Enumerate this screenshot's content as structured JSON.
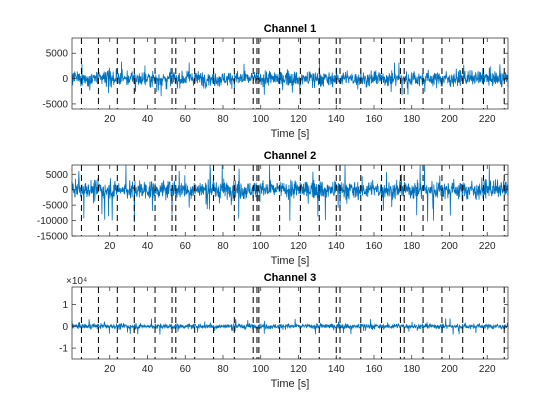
{
  "chart_data": [
    {
      "type": "line",
      "title": "Channel 1",
      "xlabel": "Time [s]",
      "ylabel": "",
      "xlim": [
        0,
        231
      ],
      "ylim": [
        -6000,
        8000
      ],
      "xticks": [
        20,
        40,
        60,
        80,
        100,
        120,
        140,
        160,
        180,
        200,
        220
      ],
      "xtick_labels": [
        "20",
        "40",
        "60",
        "80",
        "100",
        "120",
        "140",
        "160",
        "180",
        "200",
        "220"
      ],
      "yticks": [
        -5000,
        0,
        5000
      ],
      "ytick_labels": [
        "-5000",
        "0",
        "5000"
      ],
      "series": [
        {
          "color": "#0072BD",
          "amplitude_typical": 1500,
          "amplitude_peak": 3500
        }
      ],
      "event_markers": [
        5,
        14,
        24,
        33,
        44,
        53,
        55,
        65,
        75,
        86,
        96,
        98,
        99,
        110,
        121,
        131,
        140,
        142,
        153,
        164,
        174,
        176,
        186,
        196,
        207,
        218,
        229
      ]
    },
    {
      "type": "line",
      "title": "Channel 2",
      "xlabel": "Time [s]",
      "ylabel": "",
      "xlim": [
        0,
        231
      ],
      "ylim": [
        -15000,
        8000
      ],
      "xticks": [
        20,
        40,
        60,
        80,
        100,
        120,
        140,
        160,
        180,
        200,
        220
      ],
      "xtick_labels": [
        "20",
        "40",
        "60",
        "80",
        "100",
        "120",
        "140",
        "160",
        "180",
        "200",
        "220"
      ],
      "yticks": [
        -15000,
        -10000,
        -5000,
        0,
        5000
      ],
      "ytick_labels": [
        "-15000",
        "-10000",
        "-5000",
        "0",
        "5000"
      ],
      "series": [
        {
          "color": "#0072BD",
          "amplitude_typical": 3000,
          "amplitude_peak": 11000
        }
      ],
      "event_markers": [
        5,
        14,
        24,
        33,
        44,
        53,
        55,
        65,
        75,
        86,
        96,
        98,
        99,
        110,
        121,
        131,
        140,
        142,
        153,
        164,
        174,
        176,
        186,
        196,
        207,
        218,
        229
      ]
    },
    {
      "type": "line",
      "title": "Channel 3",
      "xlabel": "Time [s]",
      "ylabel": "",
      "exponent_label": "×10⁴",
      "xlim": [
        0,
        231
      ],
      "ylim": [
        -1.5,
        1.8
      ],
      "xticks": [
        20,
        40,
        60,
        80,
        100,
        120,
        140,
        160,
        180,
        200,
        220
      ],
      "xtick_labels": [
        "20",
        "40",
        "60",
        "80",
        "100",
        "120",
        "140",
        "160",
        "180",
        "200",
        "220"
      ],
      "yticks": [
        -1,
        0,
        1
      ],
      "ytick_labels": [
        "-1",
        "0",
        "1"
      ],
      "series": [
        {
          "color": "#0072BD",
          "amplitude_typical": 0.12,
          "amplitude_peak": 0.4
        }
      ],
      "event_markers": [
        5,
        14,
        24,
        33,
        44,
        53,
        55,
        65,
        75,
        86,
        96,
        98,
        99,
        110,
        121,
        131,
        140,
        142,
        153,
        164,
        174,
        176,
        186,
        196,
        207,
        218,
        229
      ]
    }
  ]
}
